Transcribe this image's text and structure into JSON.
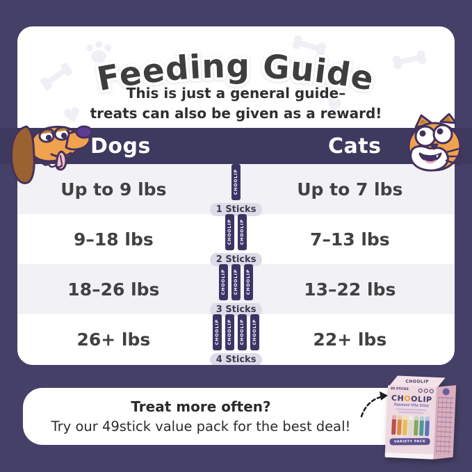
{
  "colors": {
    "background": "#454067",
    "band": "#3e395f",
    "card": "#ffffff",
    "row_alt": "#f2f1f5",
    "stick_navy": "#3b3566",
    "badge_bg": "#dedbe8",
    "text_dark": "#3f3e3e",
    "product_box_pink": "#eed9e1"
  },
  "title_card": {
    "title": "Feeding Guide",
    "subtitle_line1": "This is just a general guide–",
    "subtitle_line2": "treats can also be given as a reward!"
  },
  "band": {
    "dogs_label": "Dogs",
    "cats_label": "Cats"
  },
  "feeding_table": {
    "stick_brand": "CHOOLIP",
    "rows": [
      {
        "dogs": "Up to 9 lbs",
        "stick_count": 1,
        "badge": "1 Sticks",
        "cats": "Up to 7 lbs"
      },
      {
        "dogs": "9–18 lbs",
        "stick_count": 2,
        "badge": "2 Sticks",
        "cats": "7–13 lbs"
      },
      {
        "dogs": "18–26 lbs",
        "stick_count": 3,
        "badge": "3 Sticks",
        "cats": "13–22 lbs"
      },
      {
        "dogs": "26+ lbs",
        "stick_count": 4,
        "badge": "4 Sticks",
        "cats": "22+ lbs"
      }
    ]
  },
  "footer": {
    "heading": "Treat more often?",
    "message": "Try our 49stick value pack for the best deal!"
  },
  "product_box": {
    "brand": "CHOOLIP",
    "product_name": "Squeeze Vita Stick",
    "banner": "VARIETY PACK",
    "sticks_count": "49 STICKS"
  }
}
